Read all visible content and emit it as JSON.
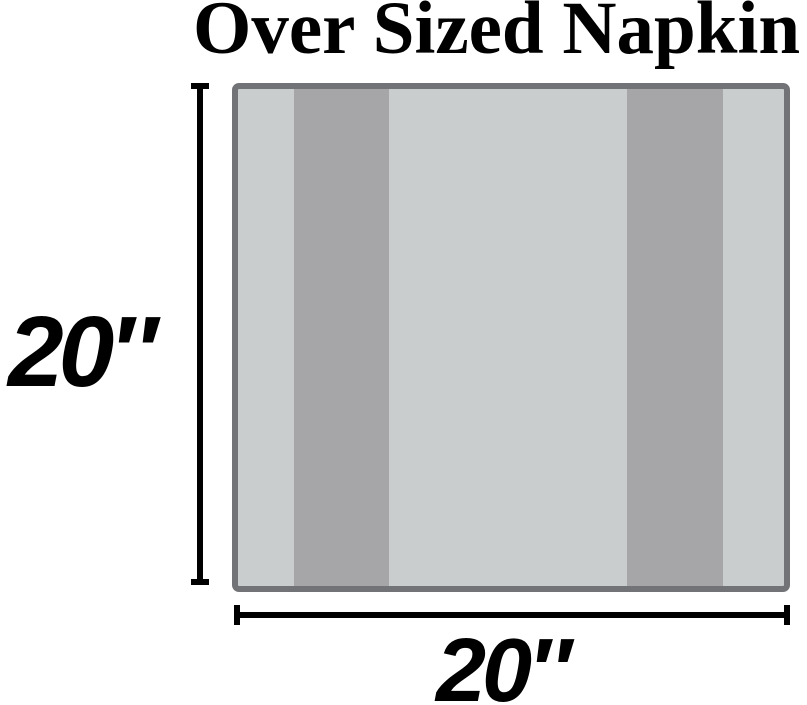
{
  "title": "Over Sized Napkin",
  "dimensions": {
    "height_label": "20″",
    "width_label": "20″"
  },
  "colors": {
    "background": "#ffffff",
    "text": "#000000",
    "dimension_line": "#000000",
    "napkin_border": "#727376",
    "napkin_base": "#c9cdcd",
    "napkin_stripe": "#a6a6a8"
  }
}
